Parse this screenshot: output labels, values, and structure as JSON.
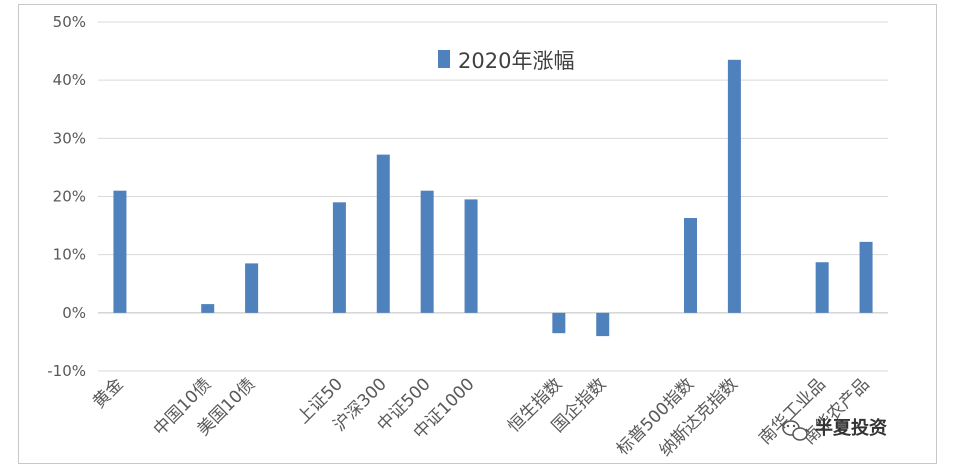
{
  "chart_data": {
    "type": "bar",
    "categories": [
      "黄金",
      "中国10债",
      "美国10债",
      "上证50",
      "沪深300",
      "中证500",
      "中证1000",
      "恒生指数",
      "国企指数",
      "标普500指数",
      "纳斯达克指数",
      "南华工业品",
      "南华农产品"
    ],
    "x_positions": [
      0,
      2,
      3,
      5,
      6,
      7,
      8,
      10,
      11,
      13,
      14,
      16,
      17
    ],
    "series": [
      {
        "name": "2020年涨幅",
        "values": [
          21.0,
          1.5,
          8.5,
          19.0,
          27.2,
          21.0,
          19.5,
          -3.5,
          -4.0,
          16.3,
          43.5,
          8.7,
          12.2
        ]
      }
    ],
    "ylim": [
      -10,
      50
    ],
    "yticks": [
      "-10%",
      "0%",
      "10%",
      "20%",
      "30%",
      "40%",
      "50%"
    ],
    "grid": true,
    "legend": "top-center",
    "color": "#4f81bd"
  },
  "watermark": {
    "text": "半夏投资",
    "icon": "wechat-icon"
  }
}
